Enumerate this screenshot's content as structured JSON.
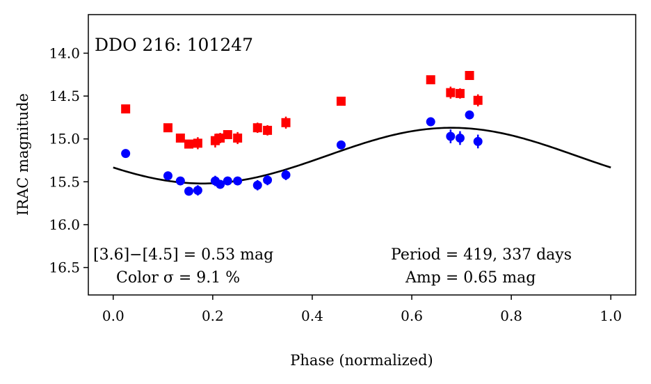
{
  "chart_data": {
    "type": "scatter",
    "title": "DDO 216:  101247",
    "xlabel": "Phase (normalized)",
    "ylabel": "IRAC magnitude",
    "xlim": [
      -0.05,
      1.05
    ],
    "ylim": [
      16.82,
      13.55
    ],
    "y_inverted": true,
    "x_ticks": [
      0.0,
      0.2,
      0.4,
      0.6,
      0.8,
      1.0
    ],
    "x_tick_labels": [
      "0.0",
      "0.2",
      "0.4",
      "0.6",
      "0.8",
      "1.0"
    ],
    "y_ticks": [
      14.0,
      14.5,
      15.0,
      15.5,
      16.0,
      16.5
    ],
    "y_tick_labels": [
      "14.0",
      "14.5",
      "15.0",
      "15.5",
      "16.0",
      "16.5"
    ],
    "grid": false,
    "annotations": {
      "color_line1": "[3.6]−[4.5] = 0.53 mag",
      "color_line2": "Color σ = 9.1 %",
      "period": "Period = 419, 337 days",
      "amp": "Amp = 0.65 mag"
    },
    "model_curve": {
      "shape": "sinusoid",
      "mean": 15.195,
      "half_amplitude": 0.325,
      "phase_of_maximum": 0.68,
      "x_range": [
        0.0,
        1.0
      ],
      "color": "#000000"
    },
    "series": [
      {
        "marker": "square",
        "color": "#ff0000",
        "x": [
          0.025,
          0.11,
          0.135,
          0.152,
          0.17,
          0.205,
          0.215,
          0.23,
          0.25,
          0.29,
          0.31,
          0.347,
          0.458,
          0.638,
          0.678,
          0.697,
          0.716,
          0.733
        ],
        "y": [
          14.65,
          14.87,
          14.99,
          15.06,
          15.05,
          15.02,
          14.99,
          14.95,
          14.99,
          14.87,
          14.9,
          14.81,
          14.56,
          14.31,
          14.46,
          14.47,
          14.26,
          14.55
        ],
        "yerr": [
          0.03,
          0.04,
          0.05,
          0.05,
          0.07,
          0.08,
          0.06,
          0.05,
          0.07,
          0.06,
          0.06,
          0.07,
          0.05,
          0.04,
          0.07,
          0.06,
          0.03,
          0.07
        ]
      },
      {
        "marker": "circle",
        "color": "#0000ff",
        "x": [
          0.025,
          0.11,
          0.135,
          0.152,
          0.17,
          0.205,
          0.215,
          0.23,
          0.25,
          0.29,
          0.31,
          0.347,
          0.458,
          0.638,
          0.678,
          0.697,
          0.716,
          0.733
        ],
        "y": [
          15.17,
          15.43,
          15.49,
          15.61,
          15.6,
          15.49,
          15.53,
          15.49,
          15.49,
          15.54,
          15.48,
          15.42,
          15.07,
          14.8,
          14.97,
          14.99,
          14.72,
          15.03
        ],
        "yerr": [
          0.03,
          0.03,
          0.04,
          0.05,
          0.06,
          0.06,
          0.05,
          0.05,
          0.05,
          0.06,
          0.06,
          0.06,
          0.04,
          0.04,
          0.08,
          0.08,
          0.05,
          0.08
        ]
      }
    ]
  }
}
